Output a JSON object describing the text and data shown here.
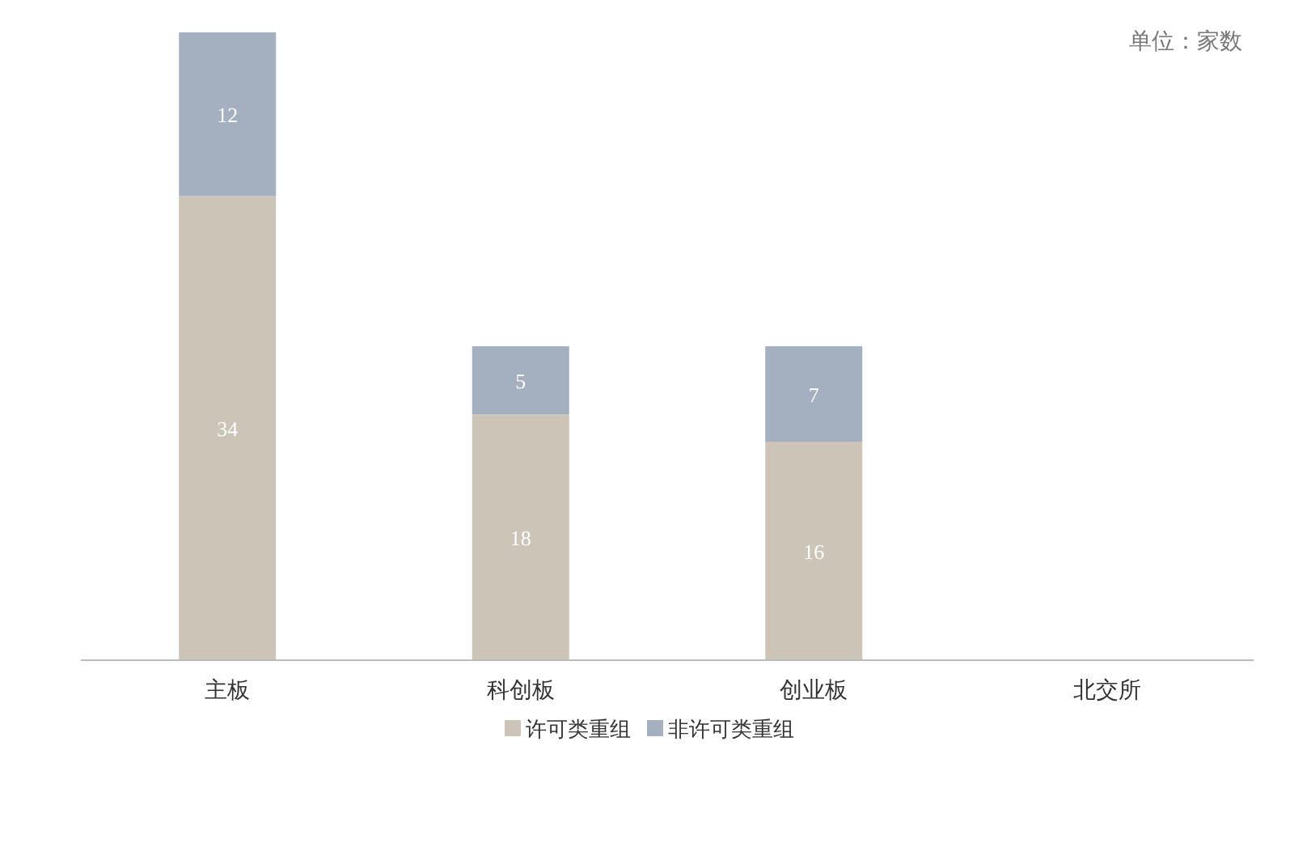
{
  "chart_data": {
    "type": "bar",
    "stacked": true,
    "categories": [
      "主板",
      "科创板",
      "创业板",
      "北交所"
    ],
    "series": [
      {
        "name": "许可类重组",
        "color": "#cdc4b8",
        "values": [
          34,
          18,
          16,
          null
        ]
      },
      {
        "name": "非许可类重组",
        "color": "#a4afbf",
        "values": [
          12,
          5,
          7,
          null
        ]
      }
    ],
    "data_labels": true,
    "legend": "bottom",
    "annotations": [
      "单位：家数"
    ]
  }
}
